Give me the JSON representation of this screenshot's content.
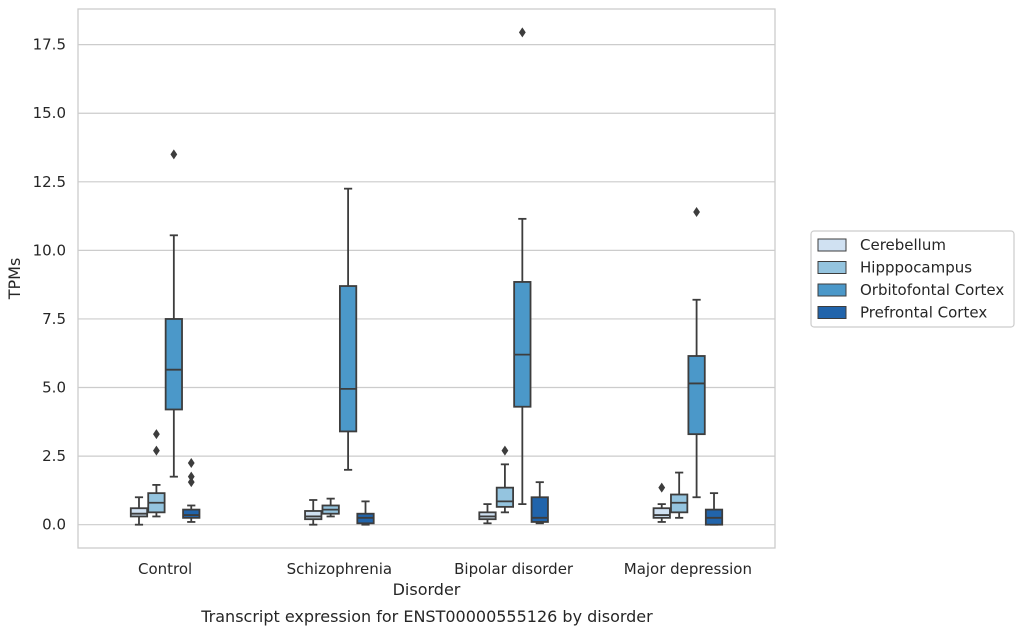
{
  "chart_data": {
    "type": "box",
    "caption": "Transcript expression for ENST00000555126 by disorder",
    "xlabel": "Disorder",
    "ylabel": "TPMs",
    "ylim": [
      -0.85,
      18.8
    ],
    "yticks": [
      0.0,
      2.5,
      5.0,
      7.5,
      10.0,
      12.5,
      15.0,
      17.5
    ],
    "ytick_labels": [
      "0.0",
      "2.5",
      "5.0",
      "7.5",
      "10.0",
      "12.5",
      "15.0",
      "17.5"
    ],
    "grid": true,
    "legend_position": "right",
    "categories": [
      "Control",
      "Schizophrenia",
      "Bipolar disorder",
      "Major depression"
    ],
    "series": [
      {
        "name": "Cerebellum",
        "color": "#d0e1f2",
        "boxes": [
          {
            "whislo": 0.0,
            "q1": 0.3,
            "med": 0.4,
            "q3": 0.6,
            "whishi": 1.0,
            "fliers": []
          },
          {
            "whislo": 0.0,
            "q1": 0.2,
            "med": 0.3,
            "q3": 0.5,
            "whishi": 0.9,
            "fliers": []
          },
          {
            "whislo": 0.05,
            "q1": 0.2,
            "med": 0.3,
            "q3": 0.45,
            "whishi": 0.75,
            "fliers": []
          },
          {
            "whislo": 0.1,
            "q1": 0.25,
            "med": 0.35,
            "q3": 0.6,
            "whishi": 0.75,
            "fliers": [
              1.35
            ]
          }
        ]
      },
      {
        "name": "Hipppocampus",
        "color": "#94c4df",
        "boxes": [
          {
            "whislo": 0.3,
            "q1": 0.45,
            "med": 0.8,
            "q3": 1.15,
            "whishi": 1.45,
            "fliers": [
              2.7,
              3.3
            ]
          },
          {
            "whislo": 0.3,
            "q1": 0.4,
            "med": 0.55,
            "q3": 0.7,
            "whishi": 0.95,
            "fliers": []
          },
          {
            "whislo": 0.45,
            "q1": 0.65,
            "med": 0.85,
            "q3": 1.35,
            "whishi": 2.2,
            "fliers": [
              2.7
            ]
          },
          {
            "whislo": 0.25,
            "q1": 0.45,
            "med": 0.8,
            "q3": 1.1,
            "whishi": 1.9,
            "fliers": []
          }
        ]
      },
      {
        "name": "Orbitofontal Cortex",
        "color": "#4b98c9",
        "boxes": [
          {
            "whislo": 1.75,
            "q1": 4.2,
            "med": 5.65,
            "q3": 7.5,
            "whishi": 10.55,
            "fliers": [
              13.5
            ]
          },
          {
            "whislo": 2.0,
            "q1": 3.4,
            "med": 4.95,
            "q3": 8.7,
            "whishi": 12.25,
            "fliers": []
          },
          {
            "whislo": 0.75,
            "q1": 4.3,
            "med": 6.2,
            "q3": 8.85,
            "whishi": 11.15,
            "fliers": [
              17.95
            ]
          },
          {
            "whislo": 1.0,
            "q1": 3.3,
            "med": 5.15,
            "q3": 6.15,
            "whishi": 8.2,
            "fliers": [
              11.4
            ]
          }
        ]
      },
      {
        "name": "Prefrontal Cortex",
        "color": "#2164ab",
        "boxes": [
          {
            "whislo": 0.1,
            "q1": 0.25,
            "med": 0.35,
            "q3": 0.55,
            "whishi": 0.7,
            "fliers": [
              1.55,
              1.75,
              2.25
            ]
          },
          {
            "whislo": 0.0,
            "q1": 0.05,
            "med": 0.25,
            "q3": 0.4,
            "whishi": 0.85,
            "fliers": []
          },
          {
            "whislo": 0.05,
            "q1": 0.1,
            "med": 0.25,
            "q3": 1.0,
            "whishi": 1.55,
            "fliers": []
          },
          {
            "whislo": 0.0,
            "q1": 0.0,
            "med": 0.25,
            "q3": 0.55,
            "whishi": 1.15,
            "fliers": []
          }
        ]
      }
    ]
  }
}
